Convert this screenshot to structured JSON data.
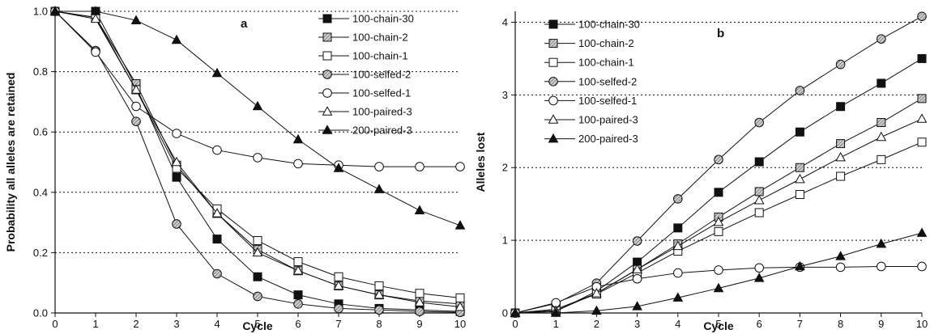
{
  "chart_data": [
    {
      "type": "line",
      "panel_label": "a",
      "title": "",
      "xlabel": "Cycle",
      "ylabel": "Probability all alleles are retained",
      "xlim": [
        0,
        10
      ],
      "ylim": [
        0,
        1.0
      ],
      "x_ticks": [
        "0",
        "1",
        "2",
        "3",
        "4",
        "5",
        "6",
        "7",
        "8",
        "9",
        "10"
      ],
      "y_ticks": [
        "0.0",
        "0.2",
        "0.4",
        "0.6",
        "0.8",
        "1.0"
      ],
      "grid": "horizontal dotted",
      "legend_position": "top-right",
      "x": [
        0,
        1,
        2,
        3,
        4,
        5,
        6,
        7,
        8,
        9,
        10
      ],
      "series": [
        {
          "name": "100-chain-30",
          "marker": "square-filled",
          "values": [
            1.0,
            1.0,
            0.75,
            0.45,
            0.245,
            0.12,
            0.06,
            0.03,
            0.015,
            0.01,
            0.005
          ]
        },
        {
          "name": "100-chain-2",
          "marker": "square-hatched",
          "values": [
            1.0,
            0.98,
            0.76,
            0.49,
            0.33,
            0.21,
            0.14,
            0.09,
            0.06,
            0.04,
            0.03
          ]
        },
        {
          "name": "100-chain-1",
          "marker": "square-open",
          "values": [
            1.0,
            0.98,
            0.74,
            0.48,
            0.345,
            0.24,
            0.17,
            0.12,
            0.09,
            0.065,
            0.05
          ]
        },
        {
          "name": "100-selfed-2",
          "marker": "circle-hatched",
          "values": [
            1.0,
            0.87,
            0.635,
            0.295,
            0.13,
            0.055,
            0.03,
            0.015,
            0.01,
            0.005,
            0.002
          ]
        },
        {
          "name": "100-selfed-1",
          "marker": "circle-open",
          "values": [
            1.0,
            0.865,
            0.685,
            0.595,
            0.54,
            0.515,
            0.495,
            0.49,
            0.485,
            0.485,
            0.485
          ]
        },
        {
          "name": "100-paired-3",
          "marker": "triangle-open",
          "values": [
            1.0,
            0.975,
            0.74,
            0.5,
            0.33,
            0.2,
            0.14,
            0.09,
            0.06,
            0.035,
            0.02
          ]
        },
        {
          "name": "200-paired-3",
          "marker": "triangle-filled",
          "values": [
            1.0,
            1.0,
            0.97,
            0.905,
            0.795,
            0.685,
            0.575,
            0.48,
            0.41,
            0.34,
            0.29
          ]
        }
      ]
    },
    {
      "type": "line",
      "panel_label": "b",
      "title": "",
      "xlabel": "Cycle",
      "ylabel": "Alleles lost",
      "xlim": [
        0,
        10
      ],
      "ylim": [
        0,
        4.15
      ],
      "x_ticks": [
        "0",
        "1",
        "2",
        "3",
        "4",
        "5",
        "6",
        "7",
        "8",
        "9",
        "10"
      ],
      "y_ticks": [
        "0",
        "1",
        "2",
        "3",
        "4"
      ],
      "grid": "horizontal dotted",
      "legend_position": "top-left",
      "x": [
        0,
        1,
        2,
        3,
        4,
        5,
        6,
        7,
        8,
        9,
        10
      ],
      "series": [
        {
          "name": "100-chain-30",
          "marker": "square-filled",
          "values": [
            0,
            0.02,
            0.3,
            0.7,
            1.17,
            1.66,
            2.08,
            2.49,
            2.84,
            3.16,
            3.5
          ]
        },
        {
          "name": "100-chain-2",
          "marker": "square-hatched",
          "values": [
            0,
            0.05,
            0.27,
            0.6,
            0.95,
            1.32,
            1.67,
            2.0,
            2.33,
            2.62,
            2.95
          ]
        },
        {
          "name": "100-chain-1",
          "marker": "square-open",
          "values": [
            0,
            0.05,
            0.26,
            0.55,
            0.85,
            1.12,
            1.38,
            1.63,
            1.88,
            2.11,
            2.35
          ]
        },
        {
          "name": "100-selfed-2",
          "marker": "circle-hatched",
          "values": [
            0,
            0.13,
            0.41,
            0.99,
            1.57,
            2.11,
            2.62,
            3.06,
            3.42,
            3.77,
            4.08
          ]
        },
        {
          "name": "100-selfed-1",
          "marker": "circle-open",
          "values": [
            0,
            0.14,
            0.36,
            0.47,
            0.55,
            0.59,
            0.62,
            0.63,
            0.63,
            0.64,
            0.64
          ]
        },
        {
          "name": "100-paired-3",
          "marker": "triangle-open",
          "values": [
            0,
            0.03,
            0.27,
            0.6,
            0.92,
            1.25,
            1.55,
            1.84,
            2.14,
            2.42,
            2.67
          ]
        },
        {
          "name": "200-paired-3",
          "marker": "triangle-filled",
          "values": [
            0,
            0.0,
            0.03,
            0.09,
            0.21,
            0.34,
            0.48,
            0.64,
            0.78,
            0.95,
            1.1
          ]
        }
      ]
    }
  ]
}
